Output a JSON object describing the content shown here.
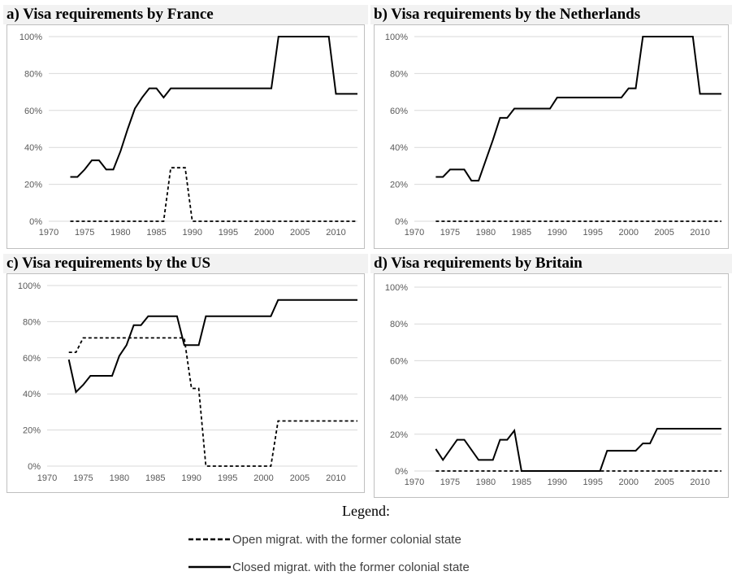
{
  "chart_data": [
    {
      "type": "line",
      "title": "a) Visa requirements by France",
      "xlim": [
        1970,
        2013
      ],
      "ylim": [
        0,
        100
      ],
      "x_ticks": [
        "1970",
        "1975",
        "1980",
        "1985",
        "1990",
        "1995",
        "2000",
        "2005",
        "2010"
      ],
      "y_ticks": [
        "0%",
        "20%",
        "40%",
        "60%",
        "80%",
        "100%"
      ],
      "series": [
        {
          "name": "Open migrat. with the former colonial state",
          "style": "dashed",
          "points": [
            [
              1973,
              0
            ],
            [
              1986,
              0
            ],
            [
              1987,
              29
            ],
            [
              1989,
              29
            ],
            [
              1990,
              0
            ],
            [
              2013,
              0
            ]
          ]
        },
        {
          "name": "Closed migrat. with the former colonial state",
          "style": "solid",
          "points": [
            [
              1973,
              24
            ],
            [
              1974,
              24
            ],
            [
              1975,
              28
            ],
            [
              1976,
              33
            ],
            [
              1977,
              33
            ],
            [
              1978,
              28
            ],
            [
              1979,
              28
            ],
            [
              1980,
              38
            ],
            [
              1981,
              50
            ],
            [
              1982,
              61
            ],
            [
              1983,
              67
            ],
            [
              1984,
              72
            ],
            [
              1985,
              72
            ],
            [
              1986,
              67
            ],
            [
              1987,
              72
            ],
            [
              2001,
              72
            ],
            [
              2002,
              100
            ],
            [
              2009,
              100
            ],
            [
              2010,
              69
            ],
            [
              2013,
              69
            ]
          ]
        }
      ]
    },
    {
      "type": "line",
      "title": "b) Visa requirements by the Netherlands",
      "xlim": [
        1970,
        2013
      ],
      "ylim": [
        0,
        100
      ],
      "x_ticks": [
        "1970",
        "1975",
        "1980",
        "1985",
        "1990",
        "1995",
        "2000",
        "2005",
        "2010"
      ],
      "y_ticks": [
        "0%",
        "20%",
        "40%",
        "60%",
        "80%",
        "100%"
      ],
      "series": [
        {
          "name": "Open migrat. with the former colonial state",
          "style": "dashed",
          "points": [
            [
              1973,
              0
            ],
            [
              2013,
              0
            ]
          ]
        },
        {
          "name": "Closed migrat. with the former colonial state",
          "style": "solid",
          "points": [
            [
              1973,
              24
            ],
            [
              1974,
              24
            ],
            [
              1975,
              28
            ],
            [
              1977,
              28
            ],
            [
              1978,
              22
            ],
            [
              1979,
              22
            ],
            [
              1980,
              33
            ],
            [
              1981,
              44
            ],
            [
              1982,
              56
            ],
            [
              1983,
              56
            ],
            [
              1984,
              61
            ],
            [
              1989,
              61
            ],
            [
              1990,
              67
            ],
            [
              1999,
              67
            ],
            [
              2000,
              72
            ],
            [
              2001,
              72
            ],
            [
              2002,
              100
            ],
            [
              2009,
              100
            ],
            [
              2010,
              69
            ],
            [
              2013,
              69
            ]
          ]
        }
      ]
    },
    {
      "type": "line",
      "title": "c) Visa requirements by the US",
      "xlim": [
        1970,
        2013
      ],
      "ylim": [
        0,
        100
      ],
      "x_ticks": [
        "1970",
        "1975",
        "1980",
        "1985",
        "1990",
        "1995",
        "2000",
        "2005",
        "2010"
      ],
      "y_ticks": [
        "0%",
        "20%",
        "40%",
        "60%",
        "80%",
        "100%"
      ],
      "series": [
        {
          "name": "Open migrat. with the former colonial state",
          "style": "dashed",
          "points": [
            [
              1973,
              63
            ],
            [
              1974,
              63
            ],
            [
              1975,
              71
            ],
            [
              1988,
              71
            ],
            [
              1989,
              71
            ],
            [
              1990,
              43
            ],
            [
              1991,
              43
            ],
            [
              1992,
              0
            ],
            [
              2001,
              0
            ],
            [
              2002,
              25
            ],
            [
              2013,
              25
            ]
          ]
        },
        {
          "name": "Closed migrat. with the former colonial state",
          "style": "solid",
          "points": [
            [
              1973,
              59
            ],
            [
              1974,
              41
            ],
            [
              1975,
              45
            ],
            [
              1976,
              50
            ],
            [
              1979,
              50
            ],
            [
              1980,
              61
            ],
            [
              1981,
              67
            ],
            [
              1982,
              78
            ],
            [
              1983,
              78
            ],
            [
              1984,
              83
            ],
            [
              1988,
              83
            ],
            [
              1989,
              67
            ],
            [
              1991,
              67
            ],
            [
              1992,
              83
            ],
            [
              2001,
              83
            ],
            [
              2002,
              92
            ],
            [
              2013,
              92
            ]
          ]
        }
      ]
    },
    {
      "type": "line",
      "title": "d) Visa requirements by Britain",
      "xlim": [
        1970,
        2013
      ],
      "ylim": [
        0,
        100
      ],
      "x_ticks": [
        "1970",
        "1975",
        "1980",
        "1985",
        "1990",
        "1995",
        "2000",
        "2005",
        "2010"
      ],
      "y_ticks": [
        "0%",
        "20%",
        "40%",
        "60%",
        "80%",
        "100%"
      ],
      "series": [
        {
          "name": "Open migrat. with the former colonial state",
          "style": "dashed",
          "points": [
            [
              1973,
              0
            ],
            [
              2013,
              0
            ]
          ]
        },
        {
          "name": "Closed migrat. with the former colonial state",
          "style": "solid",
          "points": [
            [
              1973,
              12
            ],
            [
              1974,
              6
            ],
            [
              1976,
              17
            ],
            [
              1977,
              17
            ],
            [
              1979,
              6
            ],
            [
              1981,
              6
            ],
            [
              1982,
              17
            ],
            [
              1983,
              17
            ],
            [
              1984,
              22
            ],
            [
              1985,
              0
            ],
            [
              1996,
              0
            ],
            [
              1997,
              11
            ],
            [
              2001,
              11
            ],
            [
              2002,
              15
            ],
            [
              2003,
              15
            ],
            [
              2004,
              23
            ],
            [
              2013,
              23
            ]
          ]
        }
      ]
    }
  ],
  "legend": {
    "title": "Legend:",
    "items": [
      {
        "label": "Open migrat.  with the former colonial state",
        "style": "dashed"
      },
      {
        "label": "Closed migrat.  with the former colonial state",
        "style": "solid"
      }
    ]
  },
  "colors": {
    "line": "#000000",
    "grid": "#d9d9d9",
    "axis_text": "#595959",
    "border": "#bfbfbf",
    "title_bg": "#f2f2f2"
  }
}
